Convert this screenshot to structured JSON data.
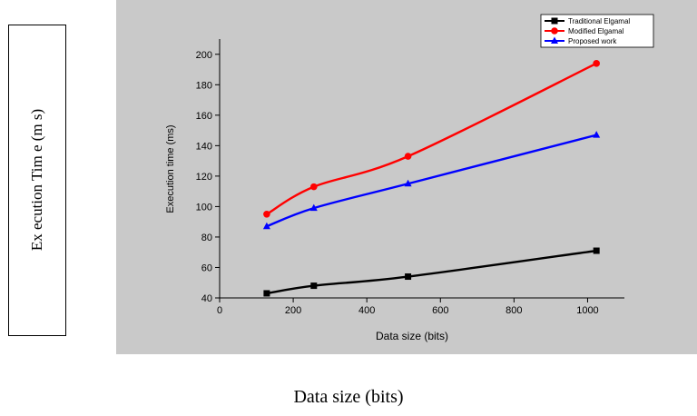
{
  "outer_labels": {
    "y": "Ex ecution Tim e (m s)",
    "x": "Data size (bits)"
  },
  "chart_data": {
    "type": "line",
    "xlabel": "Data size (bits)",
    "ylabel": "Execution time (ms)",
    "xlim": [
      0,
      1100
    ],
    "ylim": [
      40,
      210
    ],
    "xticks": [
      0,
      200,
      400,
      600,
      800,
      1000
    ],
    "yticks": [
      40,
      60,
      80,
      100,
      120,
      140,
      160,
      180,
      200
    ],
    "legend_position": "top-right",
    "grid": false,
    "series": [
      {
        "name": "Traditional Elgamal",
        "color": "#000000",
        "marker": "square",
        "x": [
          128,
          256,
          512,
          1024
        ],
        "y": [
          43,
          48,
          54,
          71
        ]
      },
      {
        "name": "Modified Elgamal",
        "color": "#ff0000",
        "marker": "circle",
        "x": [
          128,
          256,
          512,
          1024
        ],
        "y": [
          95,
          113,
          133,
          194
        ]
      },
      {
        "name": "Proposed work",
        "color": "#0000ff",
        "marker": "triangle",
        "x": [
          128,
          256,
          512,
          1024
        ],
        "y": [
          87,
          99,
          115,
          147
        ]
      }
    ]
  }
}
